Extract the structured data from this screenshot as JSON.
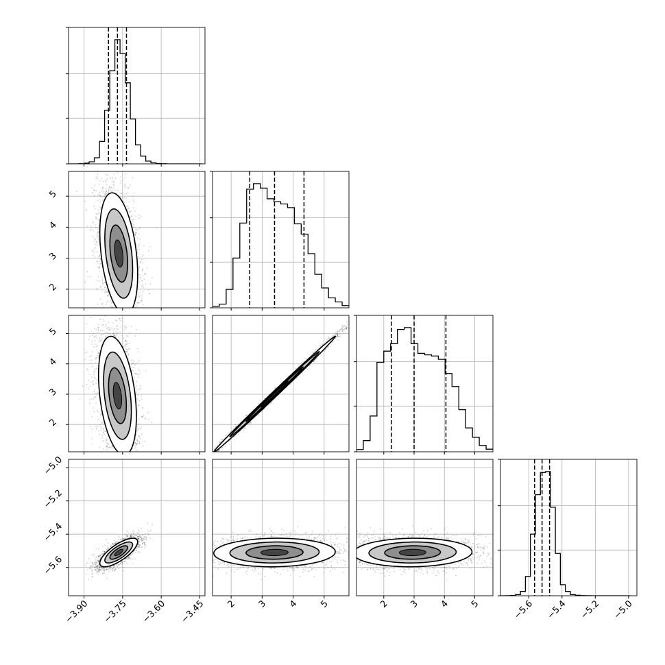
{
  "colors": {
    "line": "#000000",
    "grid": "#b0b0b0",
    "scatter": "#000000",
    "background": "#ffffff"
  },
  "chart_data": {
    "type": "corner",
    "grid": true,
    "params": [
      {
        "range": [
          -3.96,
          -3.43
        ],
        "ticks": [
          -3.9,
          -3.75,
          -3.6,
          -3.45
        ],
        "tick_labels": [
          "−3.90",
          "−3.75",
          "−3.60",
          "−3.45"
        ]
      },
      {
        "range": [
          1.4,
          5.8
        ],
        "ticks": [
          2,
          3,
          4,
          5
        ],
        "tick_labels": [
          "2",
          "3",
          "4",
          "5"
        ]
      },
      {
        "range": [
          1.1,
          5.6
        ],
        "ticks": [
          2,
          3,
          4,
          5
        ],
        "tick_labels": [
          "2",
          "3",
          "4",
          "5"
        ]
      },
      {
        "range": [
          -5.77,
          -4.95
        ],
        "ticks": [
          -5.6,
          -5.4,
          -5.2,
          -5.0
        ],
        "tick_labels": [
          "−5.6",
          "−5.4",
          "−5.2",
          "−5.0"
        ]
      }
    ],
    "histograms": [
      {
        "param": 0,
        "quantiles": [
          -3.805,
          -3.77,
          -3.735
        ],
        "bin_edges": [
          -3.96,
          -3.94,
          -3.92,
          -3.9,
          -3.88,
          -3.86,
          -3.84,
          -3.82,
          -3.8,
          -3.78,
          -3.76,
          -3.74,
          -3.72,
          -3.7,
          -3.68,
          -3.66,
          -3.64,
          -3.62,
          -3.6,
          -3.58,
          -3.56,
          -3.54,
          -3.52,
          -3.5,
          -3.48,
          -3.46,
          -3.44
        ],
        "counts": [
          0,
          0,
          1,
          4,
          12,
          35,
          130,
          310,
          540,
          720,
          640,
          470,
          260,
          110,
          45,
          16,
          6,
          2,
          1,
          0,
          0,
          0,
          0,
          0,
          0,
          0
        ]
      },
      {
        "param": 1,
        "quantiles": [
          2.6,
          3.4,
          4.35
        ],
        "bin_edges": [
          1.4,
          1.62,
          1.84,
          2.06,
          2.28,
          2.5,
          2.72,
          2.94,
          3.16,
          3.38,
          3.6,
          3.82,
          4.04,
          4.26,
          4.48,
          4.7,
          4.92,
          5.14,
          5.36,
          5.58,
          5.8
        ],
        "counts": [
          4,
          10,
          50,
          135,
          230,
          322,
          337,
          325,
          296,
          288,
          282,
          272,
          228,
          200,
          147,
          91,
          54,
          27,
          16,
          6
        ]
      },
      {
        "param": 2,
        "quantiles": [
          2.25,
          3.0,
          4.05
        ],
        "bin_edges": [
          1.1,
          1.325,
          1.55,
          1.775,
          2.0,
          2.225,
          2.45,
          2.675,
          2.9,
          3.125,
          3.35,
          3.575,
          3.8,
          4.025,
          4.25,
          4.475,
          4.7,
          4.925,
          5.15,
          5.375,
          5.6
        ],
        "counts": [
          6,
          30,
          96,
          240,
          270,
          290,
          328,
          333,
          290,
          264,
          260,
          257,
          248,
          210,
          175,
          113,
          64,
          39,
          17,
          7
        ]
      },
      {
        "param": 3,
        "quantiles": [
          -5.565,
          -5.52,
          -5.475
        ],
        "bin_edges": [
          -5.77,
          -5.74,
          -5.71,
          -5.68,
          -5.65,
          -5.62,
          -5.59,
          -5.56,
          -5.53,
          -5.5,
          -5.47,
          -5.44,
          -5.41,
          -5.38,
          -5.35,
          -5.32,
          -5.29,
          -5.26,
          -5.23,
          -5.2,
          -5.17,
          -5.14,
          -5.11,
          -5.08,
          -5.05,
          -5.02,
          -4.99
        ],
        "counts": [
          0,
          1,
          3,
          12,
          45,
          200,
          640,
          1050,
          1280,
          1290,
          920,
          440,
          115,
          45,
          12,
          5,
          2,
          1,
          0,
          0,
          0,
          0,
          0,
          0,
          0,
          0
        ]
      }
    ],
    "pairs": [
      {
        "x_param": 0,
        "y_param": 1,
        "center": [
          -3.765,
          3.15
        ],
        "sd": [
          0.03,
          0.8
        ],
        "corr": -0.35
      },
      {
        "x_param": 0,
        "y_param": 2,
        "center": [
          -3.77,
          2.95
        ],
        "sd": [
          0.03,
          0.8
        ],
        "corr": -0.35
      },
      {
        "x_param": 0,
        "y_param": 3,
        "center": [
          -3.765,
          -5.51
        ],
        "sd": [
          0.03,
          0.035
        ],
        "corr": 0.75
      },
      {
        "x_param": 1,
        "y_param": 2,
        "center": [
          3.4,
          3.0
        ],
        "sd": [
          0.8,
          0.78
        ],
        "corr": 0.998
      },
      {
        "x_param": 1,
        "y_param": 3,
        "center": [
          3.4,
          -5.51
        ],
        "sd": [
          0.8,
          0.035
        ],
        "corr": 0.05
      },
      {
        "x_param": 2,
        "y_param": 3,
        "center": [
          2.95,
          -5.51
        ],
        "sd": [
          0.8,
          0.035
        ],
        "corr": 0.05
      }
    ]
  }
}
